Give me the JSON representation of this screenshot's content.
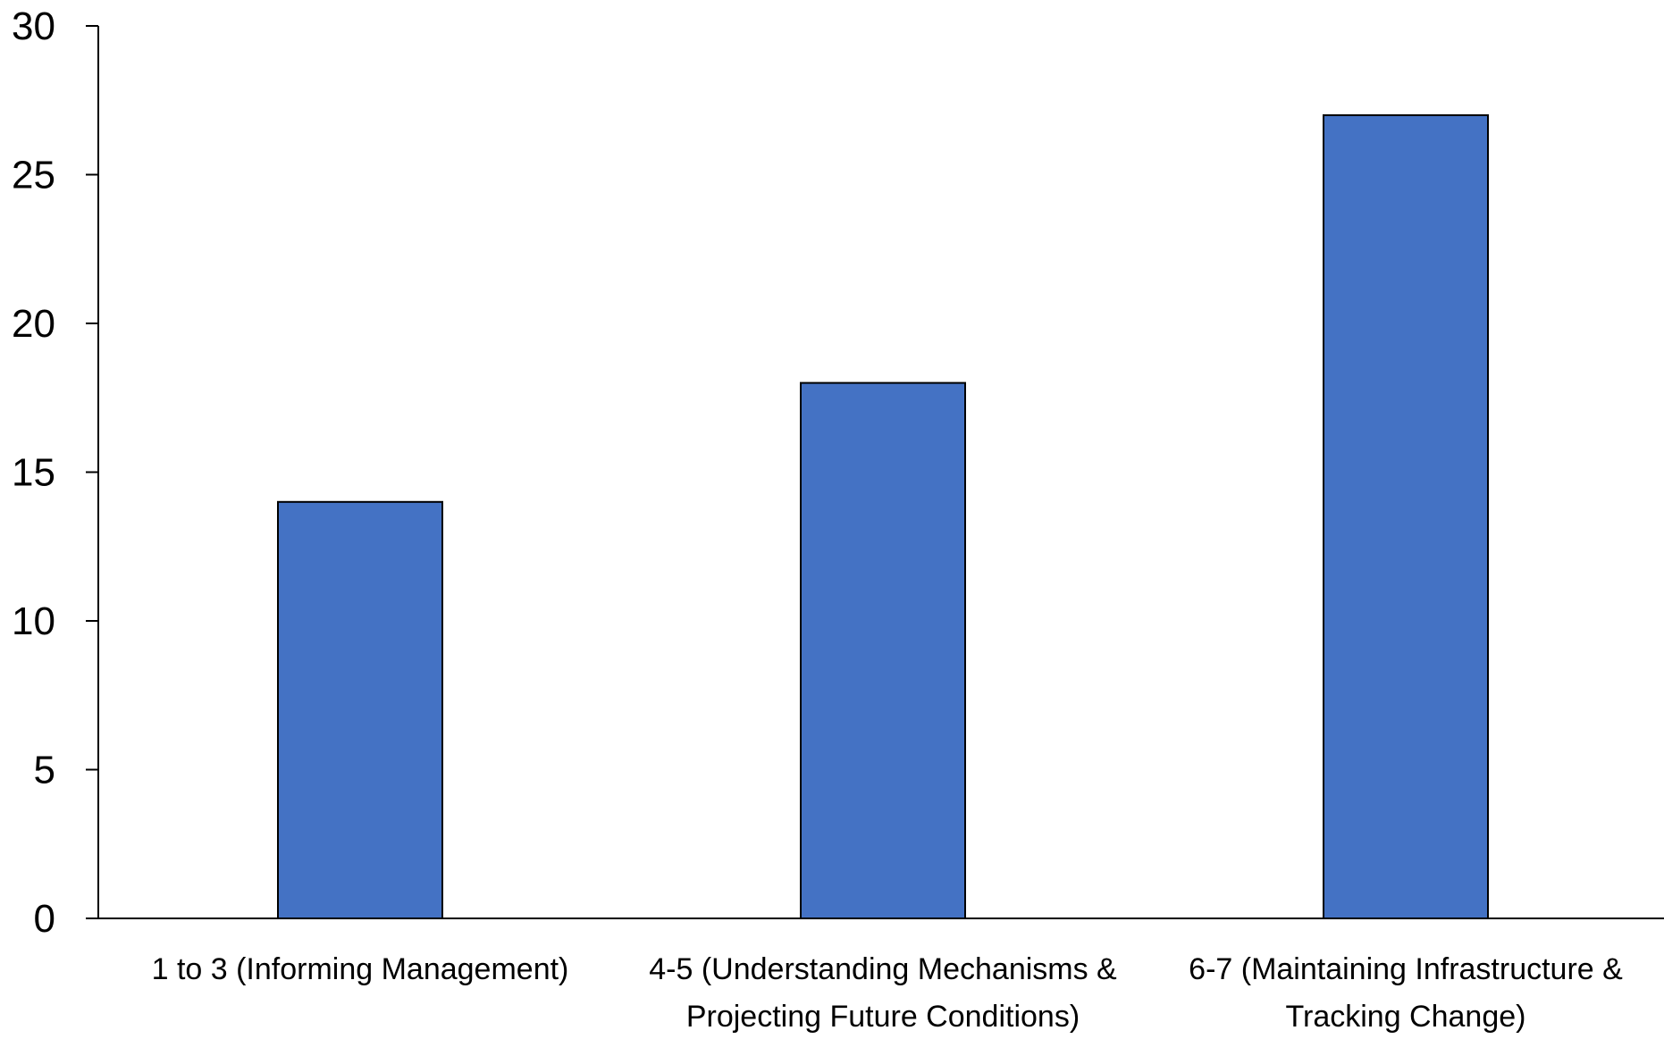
{
  "chart_data": {
    "type": "bar",
    "title": "",
    "xlabel": "",
    "ylabel": "",
    "categories": [
      [
        "1 to 3 (Informing Management)"
      ],
      [
        "4-5 (Understanding Mechanisms &",
        "Projecting Future Conditions)"
      ],
      [
        "6-7 (Maintaining Infrastructure &",
        "Tracking Change)"
      ]
    ],
    "values": [
      14,
      18,
      27
    ],
    "ylim": [
      0,
      30
    ],
    "yticks": [
      "0",
      "5",
      "10",
      "15",
      "20",
      "25",
      "30"
    ],
    "grid": false,
    "legend": "none",
    "colors": {
      "bar": "#4472C4",
      "bar_edge": "#000000",
      "axis": "#000000"
    }
  }
}
